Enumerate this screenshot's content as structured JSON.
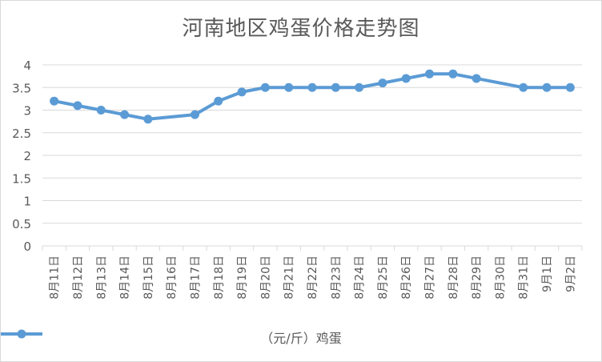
{
  "chart_data": {
    "type": "line",
    "title": "河南地区鸡蛋价格走势图",
    "categories": [
      "8月11日",
      "8月12日",
      "8月13日",
      "8月14日",
      "8月15日",
      "8月16日",
      "8月17日",
      "8月18日",
      "8月19日",
      "8月20日",
      "8月21日",
      "8月22日",
      "8月23日",
      "8月24日",
      "8月25日",
      "8月26日",
      "8月27日",
      "8月28日",
      "8月29日",
      "8月30日",
      "8月31日",
      "9月1日",
      "9月2日"
    ],
    "series": [
      {
        "name": "（元/斤）鸡蛋",
        "color": "#5b9bd5",
        "values": [
          3.2,
          3.1,
          3.0,
          2.9,
          2.8,
          null,
          2.9,
          3.2,
          3.4,
          3.5,
          3.5,
          3.5,
          3.5,
          3.5,
          3.6,
          3.7,
          3.8,
          3.8,
          3.7,
          null,
          3.5,
          3.5,
          3.5
        ]
      }
    ],
    "yticks": [
      "0",
      "0.5",
      "1",
      "1.5",
      "2",
      "2.5",
      "3",
      "3.5",
      "4"
    ],
    "ylim": [
      0,
      4
    ],
    "grid": true,
    "legend_position": "bottom"
  }
}
